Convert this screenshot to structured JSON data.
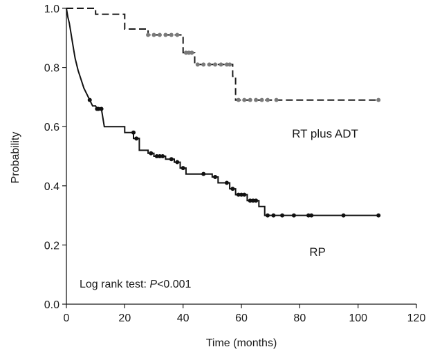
{
  "chart_data": {
    "type": "line",
    "step": true,
    "xlabel": "Time (months)",
    "ylabel": "Probability",
    "xlim": [
      0,
      120
    ],
    "ylim": [
      0,
      1.0
    ],
    "xticks": [
      "0",
      "20",
      "40",
      "60",
      "80",
      "100",
      "120"
    ],
    "yticks": [
      "0.0",
      "0.2",
      "0.4",
      "0.6",
      "0.8",
      "1.0"
    ],
    "grid": false,
    "annotation": {
      "prefix": "Log rank test: ",
      "p_symbol": "P",
      "suffix": "<0.001"
    },
    "series": [
      {
        "name": "RT plus ADT",
        "color": "#1a1a1a",
        "censor_color": "#7a7a7a",
        "dash": true,
        "points": [
          [
            0,
            1.0
          ],
          [
            10,
            1.0
          ],
          [
            10,
            0.98
          ],
          [
            20,
            0.98
          ],
          [
            20,
            0.93
          ],
          [
            28,
            0.93
          ],
          [
            28,
            0.91
          ],
          [
            40,
            0.91
          ],
          [
            40,
            0.85
          ],
          [
            44,
            0.85
          ],
          [
            44,
            0.81
          ],
          [
            57,
            0.81
          ],
          [
            57,
            0.77
          ],
          [
            58,
            0.77
          ],
          [
            58,
            0.69
          ],
          [
            107,
            0.69
          ]
        ],
        "censored": [
          [
            28,
            0.91
          ],
          [
            30,
            0.91
          ],
          [
            32,
            0.91
          ],
          [
            34,
            0.91
          ],
          [
            36,
            0.91
          ],
          [
            38,
            0.91
          ],
          [
            41,
            0.85
          ],
          [
            42,
            0.85
          ],
          [
            43,
            0.85
          ],
          [
            45,
            0.81
          ],
          [
            47,
            0.81
          ],
          [
            49,
            0.81
          ],
          [
            51,
            0.81
          ],
          [
            53,
            0.81
          ],
          [
            55,
            0.81
          ],
          [
            56,
            0.81
          ],
          [
            59,
            0.69
          ],
          [
            61,
            0.69
          ],
          [
            63,
            0.69
          ],
          [
            65,
            0.69
          ],
          [
            67,
            0.69
          ],
          [
            69,
            0.69
          ],
          [
            72,
            0.69
          ],
          [
            107,
            0.69
          ]
        ]
      },
      {
        "name": "RP",
        "color": "#111111",
        "censor_color": "#111111",
        "dash": false,
        "points": [
          [
            0,
            1.0
          ],
          [
            0.5,
            0.97
          ],
          [
            1,
            0.95
          ],
          [
            1.5,
            0.92
          ],
          [
            2,
            0.89
          ],
          [
            2.5,
            0.86
          ],
          [
            3,
            0.83
          ],
          [
            3.5,
            0.81
          ],
          [
            4,
            0.79
          ],
          [
            5,
            0.76
          ],
          [
            6,
            0.73
          ],
          [
            7,
            0.71
          ],
          [
            8,
            0.69
          ],
          [
            9,
            0.67
          ],
          [
            10,
            0.67
          ],
          [
            10.5,
            0.66
          ],
          [
            12,
            0.66
          ],
          [
            13,
            0.6
          ],
          [
            20,
            0.6
          ],
          [
            20,
            0.58
          ],
          [
            23,
            0.58
          ],
          [
            23,
            0.56
          ],
          [
            25,
            0.56
          ],
          [
            25,
            0.52
          ],
          [
            28,
            0.52
          ],
          [
            28,
            0.51
          ],
          [
            30,
            0.51
          ],
          [
            30,
            0.5
          ],
          [
            34,
            0.5
          ],
          [
            34,
            0.49
          ],
          [
            37,
            0.49
          ],
          [
            37,
            0.48
          ],
          [
            39,
            0.48
          ],
          [
            39,
            0.46
          ],
          [
            41,
            0.46
          ],
          [
            41,
            0.44
          ],
          [
            50,
            0.44
          ],
          [
            50,
            0.43
          ],
          [
            52,
            0.43
          ],
          [
            52,
            0.41
          ],
          [
            56,
            0.41
          ],
          [
            56,
            0.39
          ],
          [
            58,
            0.39
          ],
          [
            58,
            0.37
          ],
          [
            62,
            0.37
          ],
          [
            62,
            0.35
          ],
          [
            66,
            0.35
          ],
          [
            66,
            0.33
          ],
          [
            68,
            0.33
          ],
          [
            68,
            0.3
          ],
          [
            107,
            0.3
          ]
        ],
        "censored": [
          [
            8,
            0.69
          ],
          [
            10.5,
            0.66
          ],
          [
            11,
            0.66
          ],
          [
            12,
            0.66
          ],
          [
            23,
            0.58
          ],
          [
            24,
            0.56
          ],
          [
            29,
            0.51
          ],
          [
            31,
            0.5
          ],
          [
            32,
            0.5
          ],
          [
            33,
            0.5
          ],
          [
            36,
            0.49
          ],
          [
            38,
            0.48
          ],
          [
            40,
            0.46
          ],
          [
            47,
            0.44
          ],
          [
            51,
            0.43
          ],
          [
            55,
            0.41
          ],
          [
            57,
            0.39
          ],
          [
            59,
            0.37
          ],
          [
            60,
            0.37
          ],
          [
            61,
            0.37
          ],
          [
            63,
            0.35
          ],
          [
            64,
            0.35
          ],
          [
            65,
            0.35
          ],
          [
            69,
            0.3
          ],
          [
            71,
            0.3
          ],
          [
            74,
            0.3
          ],
          [
            78,
            0.3
          ],
          [
            83,
            0.3
          ],
          [
            84,
            0.3
          ],
          [
            95,
            0.3
          ],
          [
            107,
            0.3
          ]
        ]
      }
    ]
  }
}
